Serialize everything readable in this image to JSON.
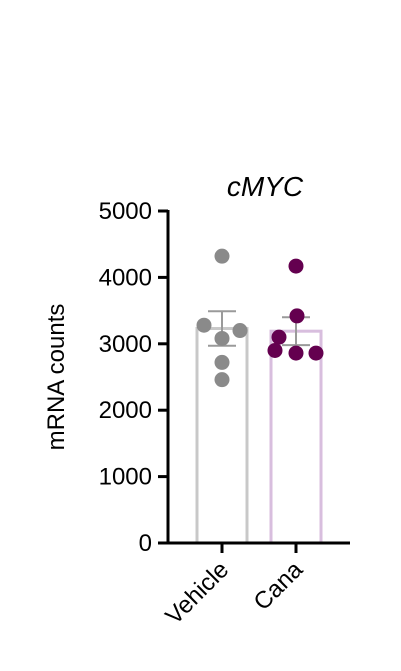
{
  "chart_data": {
    "type": "bar",
    "title": "cMYC",
    "xlabel": "",
    "ylabel": "mRNA counts",
    "ylim": [
      0,
      5000
    ],
    "yticks": [
      0,
      1000,
      2000,
      3000,
      4000,
      5000
    ],
    "categories": [
      "Vehicle",
      "Cana"
    ],
    "values": [
      3230,
      3190
    ],
    "error": [
      260,
      210
    ],
    "points": [
      [
        4320,
        3280,
        3200,
        3080,
        2720,
        2460
      ],
      [
        4170,
        3420,
        3100,
        2900,
        2860,
        2860
      ]
    ],
    "bar_outline_colors": [
      "#c8c8c8",
      "#d8bede"
    ],
    "point_colors": [
      "#8a8a8a",
      "#64004f"
    ],
    "grid": false,
    "legend": "none"
  }
}
